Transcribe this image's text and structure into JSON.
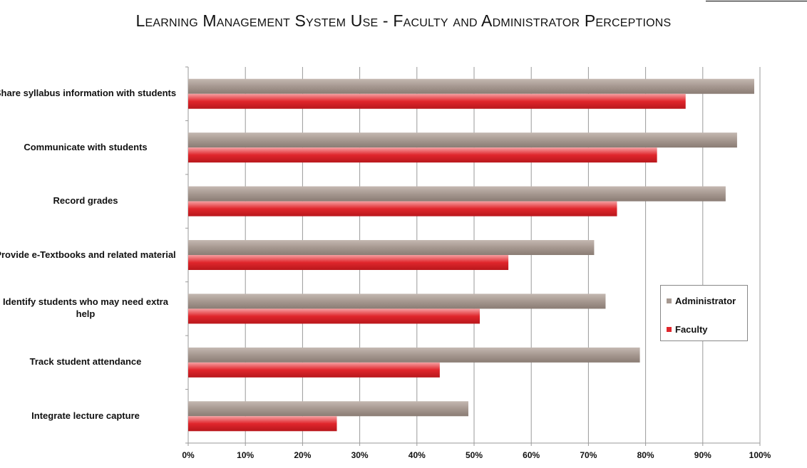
{
  "chart_data": {
    "type": "bar",
    "orientation": "horizontal",
    "title": "Learning Management System Use - Faculty and Administrator Perceptions",
    "categories": [
      "Share syllabus information with students",
      "Communicate with students",
      "Record grades",
      "Provide e-Textbooks and related material",
      "Identify students who may need extra help",
      "Track student attendance",
      "Integrate lecture capture"
    ],
    "series": [
      {
        "name": "Administrator",
        "values": [
          99,
          96,
          94,
          71,
          73,
          79,
          49
        ],
        "color": "#a69890"
      },
      {
        "name": "Faculty",
        "values": [
          87,
          82,
          75,
          56,
          51,
          44,
          26
        ],
        "color": "#e0262c"
      }
    ],
    "x_ticks": [
      "0%",
      "10%",
      "20%",
      "30%",
      "40%",
      "50%",
      "60%",
      "70%",
      "80%",
      "90%",
      "100%"
    ],
    "xlim": [
      0,
      100
    ],
    "xlabel": "",
    "ylabel": "",
    "grid": true,
    "legend_position": "right"
  }
}
